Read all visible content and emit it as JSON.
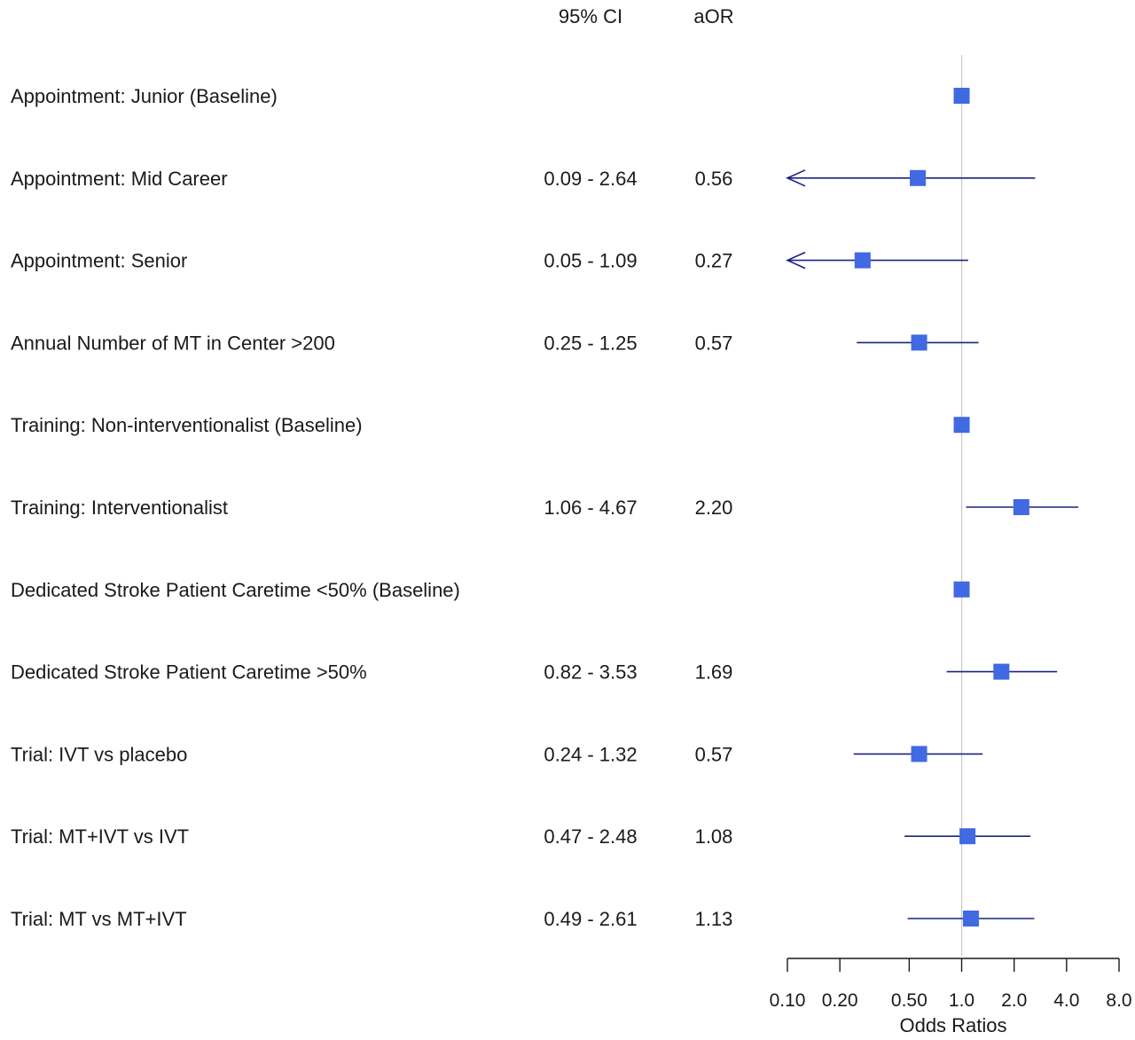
{
  "chart_data": {
    "type": "forest",
    "headers": {
      "ci": "95% CI",
      "estimate": "aOR"
    },
    "xlabel": "Odds Ratios",
    "x_scale": "log",
    "xlim": [
      0.1,
      8.0
    ],
    "reference_line": 1.0,
    "ticks": [
      {
        "value": 0.1,
        "label": "0.10"
      },
      {
        "value": 0.2,
        "label": "0.20"
      },
      {
        "value": 0.5,
        "label": "0.50"
      },
      {
        "value": 1.0,
        "label": "1.0"
      },
      {
        "value": 2.0,
        "label": "2.0"
      },
      {
        "value": 4.0,
        "label": "4.0"
      },
      {
        "value": 8.0,
        "label": "8.0"
      }
    ],
    "rows": [
      {
        "label": "Appointment: Junior (Baseline)",
        "ci_text": "",
        "or_text": "",
        "or": 1.0,
        "lower": null,
        "upper": null
      },
      {
        "label": "Appointment: Mid Career",
        "ci_text": "0.09 - 2.64",
        "or_text": "0.56",
        "or": 0.56,
        "lower": 0.09,
        "upper": 2.64
      },
      {
        "label": "Appointment: Senior",
        "ci_text": "0.05 - 1.09",
        "or_text": "0.27",
        "or": 0.27,
        "lower": 0.05,
        "upper": 1.09
      },
      {
        "label": "Annual Number of MT in Center >200",
        "ci_text": "0.25 - 1.25",
        "or_text": "0.57",
        "or": 0.57,
        "lower": 0.25,
        "upper": 1.25
      },
      {
        "label": "Training: Non-interventionalist (Baseline)",
        "ci_text": "",
        "or_text": "",
        "or": 1.0,
        "lower": null,
        "upper": null
      },
      {
        "label": "Training: Interventionalist",
        "ci_text": "1.06 - 4.67",
        "or_text": "2.20",
        "or": 2.2,
        "lower": 1.06,
        "upper": 4.67
      },
      {
        "label": "Dedicated Stroke Patient Caretime <50% (Baseline)",
        "ci_text": "",
        "or_text": "",
        "or": 1.0,
        "lower": null,
        "upper": null
      },
      {
        "label": "Dedicated Stroke Patient Caretime >50%",
        "ci_text": "0.82 - 3.53",
        "or_text": "1.69",
        "or": 1.69,
        "lower": 0.82,
        "upper": 3.53
      },
      {
        "label": "Trial: IVT vs placebo",
        "ci_text": "0.24 - 1.32",
        "or_text": "0.57",
        "or": 0.57,
        "lower": 0.24,
        "upper": 1.32
      },
      {
        "label": "Trial: MT+IVT vs IVT",
        "ci_text": "0.47 - 2.48",
        "or_text": "1.08",
        "or": 1.08,
        "lower": 0.47,
        "upper": 2.48
      },
      {
        "label": "Trial: MT vs MT+IVT",
        "ci_text": "0.49 - 2.61",
        "or_text": "1.13",
        "or": 1.13,
        "lower": 0.49,
        "upper": 2.61
      }
    ],
    "colors": {
      "point": "#4169e1",
      "ci_line": "#1a237e",
      "reference_line": "#c8c8c8",
      "axis": "#1a1a1a"
    }
  }
}
